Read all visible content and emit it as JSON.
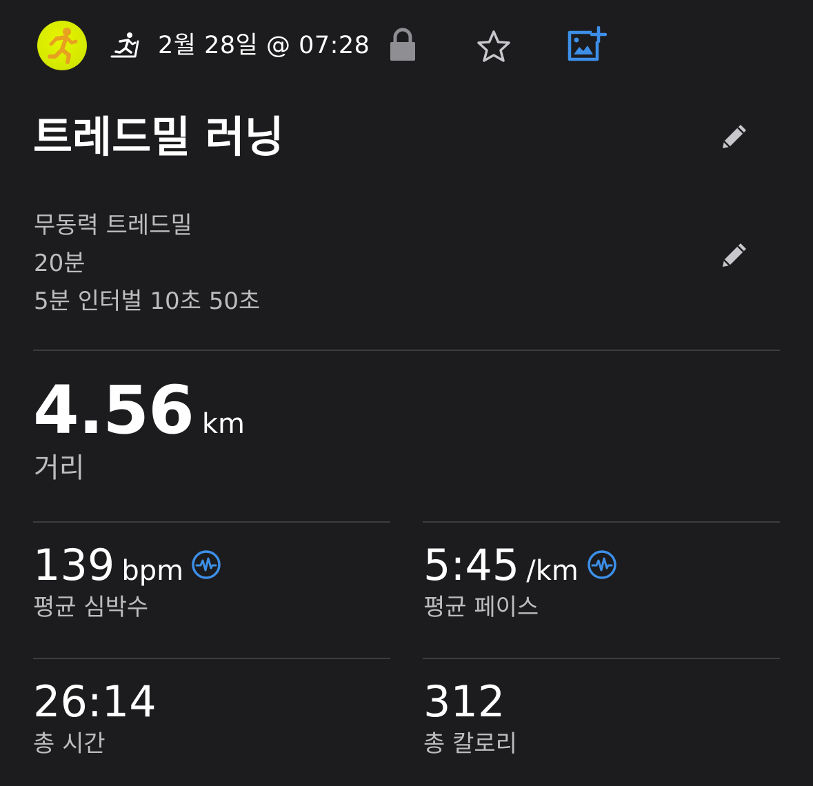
{
  "header": {
    "avatar_icon": "runner-icon",
    "activity_icon": "treadmill-icon",
    "date": "2월 28일 @ 07:28",
    "lock_icon": "lock-icon",
    "favorite_icon": "star-icon",
    "add_photo_icon": "add-photo-icon"
  },
  "title": "트레드밀 러닝",
  "notes": [
    "무동력 트레드밀",
    "20분",
    "5분 인터벌 10초 50초"
  ],
  "distance": {
    "value": "4.56",
    "unit": "km",
    "label": "거리"
  },
  "stats": {
    "heart_rate": {
      "value": "139",
      "unit": "bpm",
      "label": "평균 심박수"
    },
    "pace": {
      "value": "5:45",
      "unit": "/km",
      "label": "평균 페이스"
    },
    "time": {
      "value": "26:14",
      "label": "총 시간"
    },
    "calories": {
      "value": "312",
      "label": "총 칼로리"
    }
  },
  "colors": {
    "background": "#1c1c1e",
    "accent_blue": "#3d8fe8",
    "avatar_yellow": "#d6ea00",
    "runner_orange": "#e8a020",
    "muted_text": "#bdbdbf",
    "divider": "#3d3d40"
  }
}
